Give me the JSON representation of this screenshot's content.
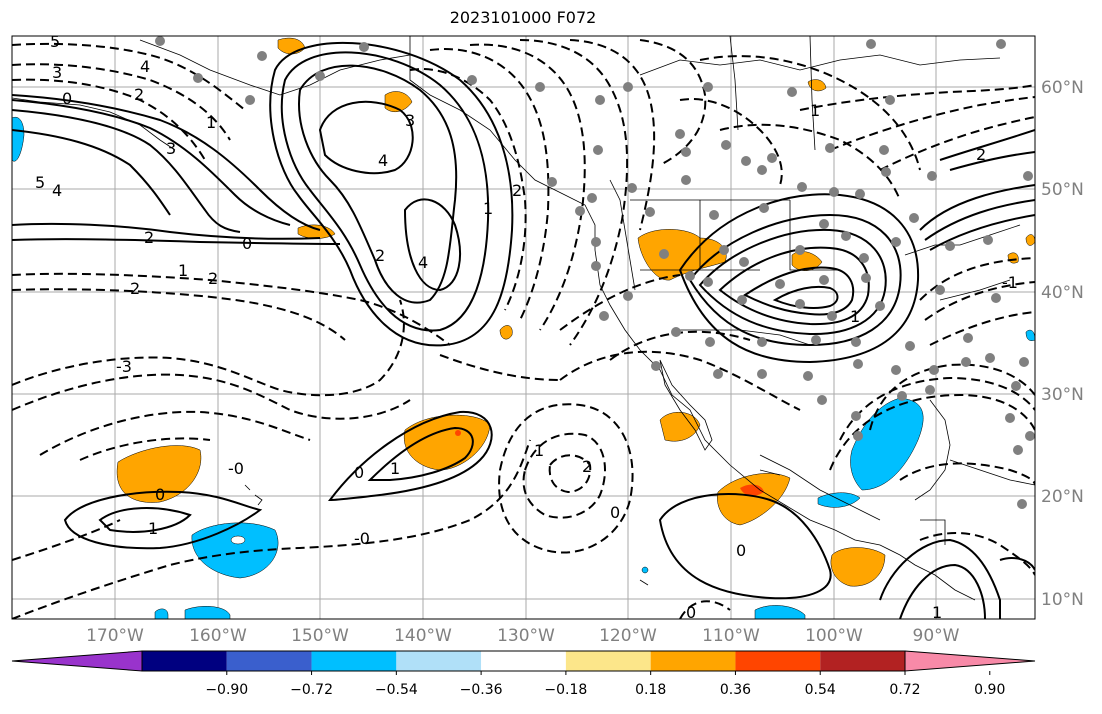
{
  "title": "2023101000 F072",
  "lon_labels": [
    "170°W",
    "160°W",
    "150°W",
    "140°W",
    "130°W",
    "120°W",
    "110°W",
    "100°W",
    "90°W"
  ],
  "lat_labels": [
    "60°N",
    "50°N",
    "40°N",
    "30°N",
    "20°N",
    "10°N"
  ],
  "contour_labels": [
    "5",
    "3",
    "2",
    "0",
    "1",
    "4",
    "3",
    "4",
    "2",
    "4",
    "1",
    "2",
    "5",
    "4",
    "3",
    "2",
    "1",
    "2",
    "0",
    "2",
    "-3",
    "-0",
    "0",
    "1",
    "0",
    "1",
    "-0",
    "1",
    "2",
    "0",
    "0",
    "0",
    "1",
    "1",
    "2",
    "1",
    "-1"
  ],
  "colorbar": {
    "ticks": [
      "−0.90",
      "−0.72",
      "−0.54",
      "−0.36",
      "−0.18",
      "0.18",
      "0.36",
      "0.54",
      "0.72",
      "0.90"
    ],
    "colors": [
      "#9933cc",
      "#000080",
      "#3a5fcd",
      "#00bfff",
      "#b0e0f8",
      "#ffffff",
      "#fce68a",
      "#ffa500",
      "#ff4500",
      "#b22222",
      "#f88aa8"
    ]
  }
}
